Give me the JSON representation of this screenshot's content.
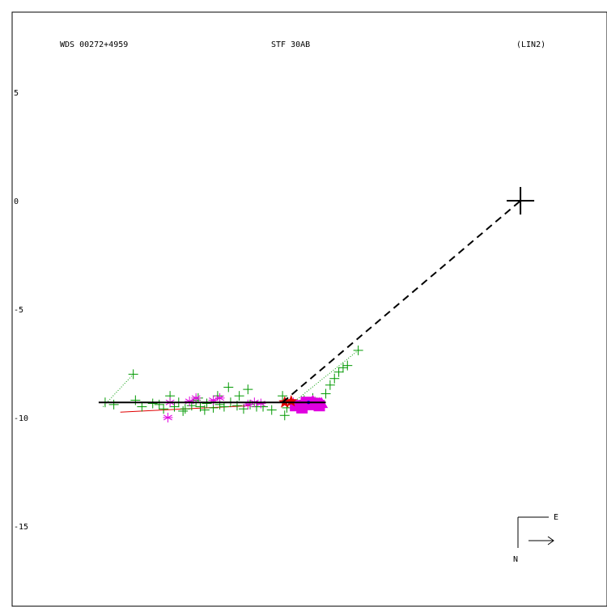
{
  "header": {
    "left": "WDS 00272+4959",
    "center": "STF  30AB",
    "right": "(LIN2)"
  },
  "compass": {
    "east": "E",
    "north": "N"
  },
  "chart_data": {
    "type": "scatter",
    "y_tick_labels": [
      "5",
      "0",
      "-5",
      "-10",
      "-15"
    ],
    "y_ticks": [
      5,
      0,
      -5,
      -10,
      -15
    ],
    "xlim": [
      -23.5,
      4
    ],
    "ylim": [
      -18.7,
      8.7
    ],
    "primary": [
      0,
      0
    ],
    "colors": {
      "green": "#009900",
      "magenta": "#e000e0",
      "red": "#e00000",
      "blue": "#0000dd",
      "fit": "#000000"
    },
    "fit_line": {
      "x": [
        -19.5,
        -9.0
      ],
      "y": [
        -9.3,
        -9.3
      ]
    },
    "dashed_line": {
      "x": [
        -11.0,
        0
      ],
      "y": [
        -9.3,
        0
      ]
    },
    "red_trend": {
      "x": [
        -18.5,
        -12.5
      ],
      "y": [
        -9.75,
        -9.45
      ]
    },
    "green_dotted": [
      {
        "x": [
          -19.3,
          -17.9
        ],
        "y": [
          -9.5,
          -8.0
        ]
      },
      {
        "x": [
          -10.5,
          -7.5
        ],
        "y": [
          -9.3,
          -6.9
        ]
      }
    ],
    "green_plus": [
      {
        "x": -19.2,
        "y": -9.3
      },
      {
        "x": -17.9,
        "y": -8.0
      },
      {
        "x": -18.8,
        "y": -9.4
      },
      {
        "x": -17.8,
        "y": -9.2
      },
      {
        "x": -17.5,
        "y": -9.5
      },
      {
        "x": -17.0,
        "y": -9.35
      },
      {
        "x": -16.7,
        "y": -9.4
      },
      {
        "x": -16.0,
        "y": -9.5
      },
      {
        "x": -15.8,
        "y": -9.3
      },
      {
        "x": -15.5,
        "y": -9.6
      },
      {
        "x": -15.2,
        "y": -9.45
      },
      {
        "x": -14.8,
        "y": -9.5
      },
      {
        "x": -14.5,
        "y": -9.35
      },
      {
        "x": -14.2,
        "y": -9.55
      },
      {
        "x": -13.9,
        "y": -9.4
      },
      {
        "x": -13.7,
        "y": -9.5
      },
      {
        "x": -13.4,
        "y": -9.3
      },
      {
        "x": -13.1,
        "y": -9.45
      },
      {
        "x": -12.8,
        "y": -9.6
      },
      {
        "x": -12.5,
        "y": -9.4
      },
      {
        "x": -12.2,
        "y": -9.5
      },
      {
        "x": -13.5,
        "y": -8.6
      },
      {
        "x": -14.0,
        "y": -9.0
      },
      {
        "x": -14.9,
        "y": -9.1
      },
      {
        "x": -12.6,
        "y": -8.7
      },
      {
        "x": -13.0,
        "y": -9.0
      },
      {
        "x": -11.9,
        "y": -9.5
      },
      {
        "x": -11.5,
        "y": -9.65
      },
      {
        "x": -11.0,
        "y": -9.0
      },
      {
        "x": -10.8,
        "y": -9.55
      },
      {
        "x": -10.6,
        "y": -9.3
      },
      {
        "x": -10.9,
        "y": -9.9
      },
      {
        "x": -10.4,
        "y": -9.4
      },
      {
        "x": -10.0,
        "y": -9.2
      },
      {
        "x": -9.6,
        "y": -9.1
      },
      {
        "x": -9.3,
        "y": -9.4
      },
      {
        "x": -9.0,
        "y": -8.9
      },
      {
        "x": -8.8,
        "y": -8.5
      },
      {
        "x": -8.6,
        "y": -8.2
      },
      {
        "x": -8.4,
        "y": -7.9
      },
      {
        "x": -8.2,
        "y": -7.7
      },
      {
        "x": -8.0,
        "y": -7.6
      },
      {
        "x": -7.5,
        "y": -6.9
      },
      {
        "x": -16.2,
        "y": -9.0
      },
      {
        "x": -15.0,
        "y": -9.2
      },
      {
        "x": -16.5,
        "y": -9.6
      },
      {
        "x": -15.6,
        "y": -9.7
      },
      {
        "x": -14.6,
        "y": -9.65
      }
    ],
    "magenta_star": [
      {
        "x": -16.2,
        "y": -9.3
      },
      {
        "x": -16.3,
        "y": -10.0
      },
      {
        "x": -15.3,
        "y": -9.25
      },
      {
        "x": -15.0,
        "y": -9.1
      },
      {
        "x": -14.2,
        "y": -9.2
      },
      {
        "x": -13.9,
        "y": -9.1
      },
      {
        "x": -12.6,
        "y": -9.4
      },
      {
        "x": -12.3,
        "y": -9.3
      },
      {
        "x": -12.0,
        "y": -9.35
      },
      {
        "x": -10.5,
        "y": -9.3
      },
      {
        "x": -10.2,
        "y": -9.5
      },
      {
        "x": -10.0,
        "y": -9.35
      },
      {
        "x": -9.9,
        "y": -9.45
      },
      {
        "x": -9.8,
        "y": -9.3
      },
      {
        "x": -9.6,
        "y": -9.4
      },
      {
        "x": -9.5,
        "y": -9.25
      },
      {
        "x": -9.4,
        "y": -9.35
      },
      {
        "x": -9.3,
        "y": -9.3
      }
    ],
    "magenta_square": [
      {
        "x": -10.4,
        "y": -9.45
      },
      {
        "x": -10.1,
        "y": -9.55
      },
      {
        "x": -9.9,
        "y": -9.3
      },
      {
        "x": -9.7,
        "y": -9.4
      },
      {
        "x": -9.5,
        "y": -9.35
      },
      {
        "x": -9.3,
        "y": -9.45
      }
    ],
    "magenta_triangle": [
      {
        "x": -9.6,
        "y": -9.25
      },
      {
        "x": -9.2,
        "y": -9.35
      }
    ],
    "red_star": [
      {
        "x": -10.9,
        "y": -9.3
      },
      {
        "x": -10.6,
        "y": -9.25
      }
    ],
    "blue_point": [
      {
        "x": -9.8,
        "y": -9.3
      }
    ]
  }
}
